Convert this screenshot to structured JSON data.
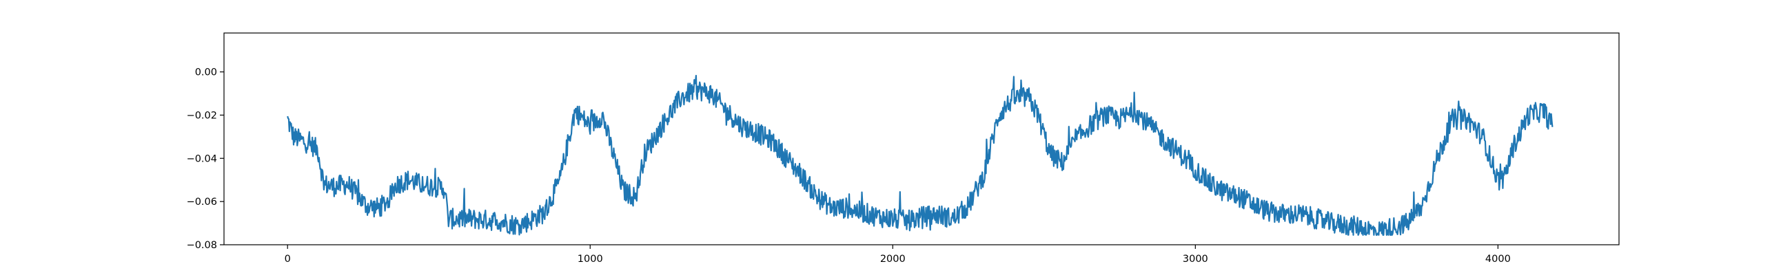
{
  "chart_data": {
    "type": "line",
    "title": "",
    "xlabel": "",
    "ylabel": "",
    "xlim": [
      -210,
      4400
    ],
    "ylim": [
      -0.08,
      0.018
    ],
    "grid": false,
    "legend": "none",
    "x_ticks": [
      {
        "value": 0,
        "label": "0"
      },
      {
        "value": 1000,
        "label": "1000"
      },
      {
        "value": 2000,
        "label": "2000"
      },
      {
        "value": 3000,
        "label": "3000"
      },
      {
        "value": 4000,
        "label": "4000"
      }
    ],
    "y_ticks": [
      {
        "value": -0.08,
        "label": "−0.08"
      },
      {
        "value": -0.06,
        "label": "−0.06"
      },
      {
        "value": -0.04,
        "label": "−0.04"
      },
      {
        "value": -0.02,
        "label": "−0.02"
      },
      {
        "value": 0.0,
        "label": "0.00"
      }
    ],
    "series": [
      {
        "color": "#1f77b4",
        "noise_amplitude": 0.006,
        "x": [
          0,
          20,
          50,
          80,
          100,
          120,
          150,
          200,
          260,
          300,
          330,
          360,
          400,
          440,
          480,
          520,
          530,
          600,
          700,
          760,
          800,
          850,
          900,
          950,
          1000,
          1040,
          1080,
          1110,
          1150,
          1180,
          1250,
          1300,
          1350,
          1400,
          1450,
          1500,
          1550,
          1600,
          1650,
          1700,
          1750,
          1800,
          1850,
          1900,
          1950,
          2000,
          2050,
          2100,
          2150,
          2200,
          2250,
          2300,
          2350,
          2400,
          2450,
          2480,
          2520,
          2560,
          2600,
          2650,
          2700,
          2750,
          2800,
          2850,
          2900,
          2950,
          3000,
          3050,
          3100,
          3150,
          3200,
          3250,
          3300,
          3350,
          3400,
          3450,
          3500,
          3550,
          3600,
          3650,
          3700,
          3750,
          3800,
          3850,
          3900,
          3950,
          4000,
          4020,
          4050,
          4100,
          4150,
          4180
        ],
        "y": [
          -0.022,
          -0.03,
          -0.032,
          -0.034,
          -0.036,
          -0.052,
          -0.053,
          -0.052,
          -0.062,
          -0.063,
          -0.06,
          -0.052,
          -0.05,
          -0.052,
          -0.053,
          -0.054,
          -0.068,
          -0.068,
          -0.069,
          -0.071,
          -0.069,
          -0.065,
          -0.05,
          -0.018,
          -0.025,
          -0.02,
          -0.04,
          -0.055,
          -0.058,
          -0.038,
          -0.022,
          -0.012,
          -0.008,
          -0.01,
          -0.018,
          -0.025,
          -0.028,
          -0.032,
          -0.04,
          -0.048,
          -0.058,
          -0.063,
          -0.063,
          -0.065,
          -0.067,
          -0.068,
          -0.069,
          -0.067,
          -0.066,
          -0.068,
          -0.062,
          -0.048,
          -0.02,
          -0.012,
          -0.012,
          -0.02,
          -0.038,
          -0.042,
          -0.032,
          -0.025,
          -0.02,
          -0.022,
          -0.018,
          -0.025,
          -0.032,
          -0.038,
          -0.045,
          -0.052,
          -0.056,
          -0.058,
          -0.062,
          -0.065,
          -0.066,
          -0.066,
          -0.068,
          -0.07,
          -0.071,
          -0.072,
          -0.074,
          -0.072,
          -0.07,
          -0.062,
          -0.04,
          -0.022,
          -0.022,
          -0.03,
          -0.05,
          -0.05,
          -0.035,
          -0.02,
          -0.018,
          -0.025
        ]
      }
    ]
  }
}
